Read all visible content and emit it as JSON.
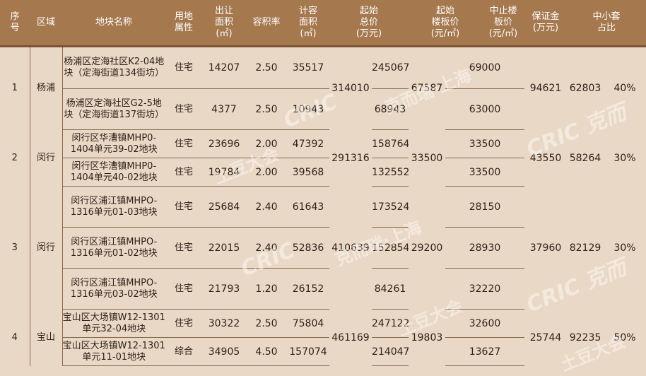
{
  "headers": {
    "seq": "序\n号",
    "district": "区域",
    "plot_name": "地块名称",
    "land_use": "用地\n属性",
    "area": "出让\n面积\n(㎡)",
    "far": "容积率",
    "gfa": "计容\n面积\n(㎡)",
    "start_total": "起始\n总价\n(万元)",
    "start_unit": "起始\n楼板价\n(元/㎡)",
    "stop_unit": "中止楼\n板价\n(元/㎡)",
    "deposit": "保证金\n(万元)",
    "small_ratio": "中小套\n占比"
  },
  "groups": [
    {
      "seq": "1",
      "district": "杨浦",
      "start_total": "314010",
      "start_unit": "67587",
      "stop_unit": "94621",
      "deposit": "62803",
      "small_ratio": "40%",
      "plots": [
        {
          "name": "杨浦区定海社区K2-04地块（定海街道134街坊）",
          "use": "住宅",
          "area": "14207",
          "far": "2.50",
          "gfa": "35517",
          "total": "245067",
          "unit": "69000"
        },
        {
          "name": "杨浦区定海社区G2-5地块（定海街道137街坊）",
          "use": "住宅",
          "area": "4377",
          "far": "2.50",
          "gfa": "10943",
          "total": "68943",
          "unit": "63000"
        }
      ]
    },
    {
      "seq": "2",
      "district": "闵行",
      "start_total": "291316",
      "start_unit": "33500",
      "stop_unit": "43550",
      "deposit": "58264",
      "small_ratio": "30%",
      "plots": [
        {
          "name": "闵行区华漕镇MHP0-1404单元39-02地块",
          "use": "住宅",
          "area": "23696",
          "far": "2.00",
          "gfa": "47392",
          "total": "158764",
          "unit": "33500"
        },
        {
          "name": "闵行区华漕镇MHP0-1404单元40-02地块",
          "use": "住宅",
          "area": "19784",
          "far": "2.00",
          "gfa": "39568",
          "total": "132552",
          "unit": "33500"
        }
      ]
    },
    {
      "seq": "3",
      "district": "闵行",
      "start_total": "410639",
      "start_unit": "29200",
      "stop_unit": "37960",
      "deposit": "82129",
      "small_ratio": "30%",
      "plots": [
        {
          "name": "闵行区浦江镇MHPO-1316单元01-03地块",
          "use": "住宅",
          "area": "25684",
          "far": "2.40",
          "gfa": "61643",
          "total": "173524",
          "unit": "28150"
        },
        {
          "name": "闵行区浦江镇MHPO-1316单元01-02地块",
          "use": "住宅",
          "area": "22015",
          "far": "2.40",
          "gfa": "52836",
          "total": "152854",
          "unit": "28930"
        },
        {
          "name": "闵行区浦江镇MHPO-1316单元03-02地块",
          "use": "住宅",
          "area": "21793",
          "far": "1.20",
          "gfa": "26152",
          "total": "84261",
          "unit": "32220"
        }
      ]
    },
    {
      "seq": "4",
      "district": "宝山",
      "start_total": "461169",
      "start_unit": "19803",
      "stop_unit": "25744",
      "deposit": "92235",
      "small_ratio": "50%",
      "plots": [
        {
          "name": "宝山区大场镇W12-1301单元32-04地块",
          "use": "住宅",
          "area": "30322",
          "far": "2.50",
          "gfa": "75804",
          "total": "247122",
          "unit": "32600"
        },
        {
          "name": "宝山区大场镇W12-1301单元11-01地块",
          "use": "综合",
          "area": "34905",
          "far": "4.50",
          "gfa": "157074",
          "total": "214047",
          "unit": "13627"
        }
      ]
    }
  ],
  "colors": {
    "header_bg": "#a5784d",
    "body_bg": "#ead8c6",
    "rule": "#8a6a4e",
    "text": "#2e2218"
  }
}
